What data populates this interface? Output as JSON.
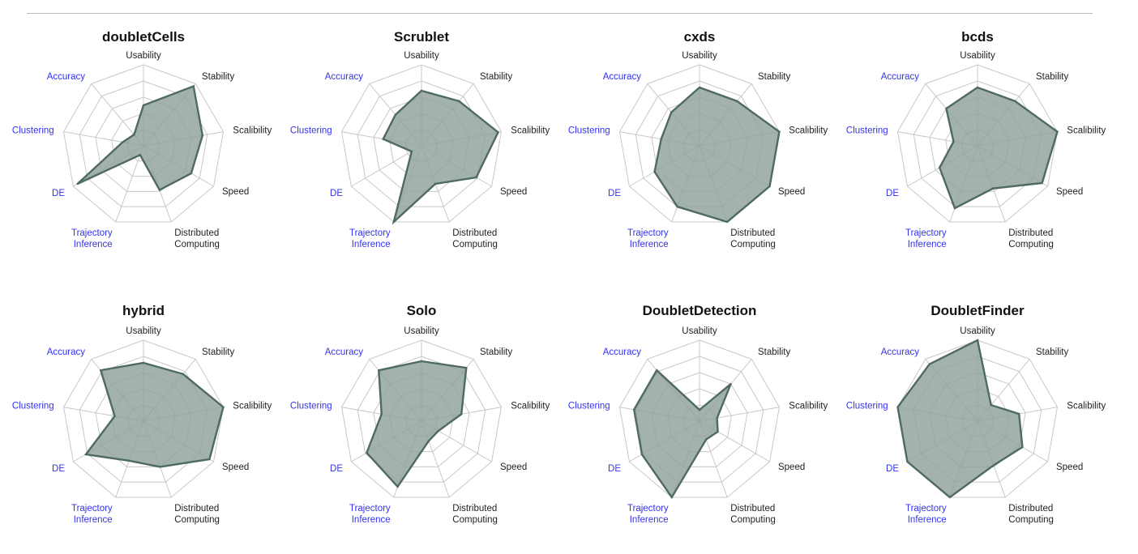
{
  "colors": {
    "polygon_fill": "#8fa19d",
    "polygon_stroke": "#4e6a62",
    "grid": "#c8c8c8",
    "label_blue": "#3333ee",
    "label_black": "#222222"
  },
  "chart_data": [
    {
      "type": "radar",
      "title": "doubletCells",
      "axes": [
        {
          "label": "Usability",
          "color": "black"
        },
        {
          "label": "Stability",
          "color": "black"
        },
        {
          "label": "Scalibility",
          "color": "black"
        },
        {
          "label": "Speed",
          "color": "black"
        },
        {
          "label": "Distributed\nComputing",
          "color": "black"
        },
        {
          "label": "Trajectory\nInference",
          "color": "blue"
        },
        {
          "label": "DE",
          "color": "blue"
        },
        {
          "label": "Clustering",
          "color": "blue"
        },
        {
          "label": "Accuracy",
          "color": "blue"
        }
      ],
      "rlim": [
        0,
        5
      ],
      "values": [
        2.5,
        4.8,
        3.7,
        3.4,
        2.9,
        0.6,
        4.7,
        1.3,
        0.9
      ]
    },
    {
      "type": "radar",
      "title": "Scrublet",
      "axes": [
        {
          "label": "Usability",
          "color": "black"
        },
        {
          "label": "Stability",
          "color": "black"
        },
        {
          "label": "Scalibility",
          "color": "black"
        },
        {
          "label": "Speed",
          "color": "black"
        },
        {
          "label": "Distributed\nComputing",
          "color": "black"
        },
        {
          "label": "Trajectory\nInference",
          "color": "blue"
        },
        {
          "label": "DE",
          "color": "blue"
        },
        {
          "label": "Clustering",
          "color": "blue"
        },
        {
          "label": "Accuracy",
          "color": "blue"
        }
      ],
      "rlim": [
        0,
        5
      ],
      "values": [
        3.4,
        3.6,
        4.8,
        3.9,
        2.5,
        5.0,
        0.7,
        2.4,
        2.5
      ]
    },
    {
      "type": "radar",
      "title": "cxds",
      "axes": [
        {
          "label": "Usability",
          "color": "black"
        },
        {
          "label": "Stability",
          "color": "black"
        },
        {
          "label": "Scalibility",
          "color": "black"
        },
        {
          "label": "Speed",
          "color": "black"
        },
        {
          "label": "Distributed\nComputing",
          "color": "black"
        },
        {
          "label": "Trajectory\nInference",
          "color": "blue"
        },
        {
          "label": "DE",
          "color": "blue"
        },
        {
          "label": "Clustering",
          "color": "blue"
        },
        {
          "label": "Accuracy",
          "color": "blue"
        }
      ],
      "rlim": [
        0,
        5
      ],
      "values": [
        3.6,
        3.6,
        5.0,
        5.0,
        5.0,
        4.0,
        3.2,
        2.4,
        2.7
      ]
    },
    {
      "type": "radar",
      "title": "bcds",
      "axes": [
        {
          "label": "Usability",
          "color": "black"
        },
        {
          "label": "Stability",
          "color": "black"
        },
        {
          "label": "Scalibility",
          "color": "black"
        },
        {
          "label": "Speed",
          "color": "black"
        },
        {
          "label": "Distributed\nComputing",
          "color": "black"
        },
        {
          "label": "Trajectory\nInference",
          "color": "blue"
        },
        {
          "label": "DE",
          "color": "blue"
        },
        {
          "label": "Clustering",
          "color": "blue"
        },
        {
          "label": "Accuracy",
          "color": "blue"
        }
      ],
      "rlim": [
        0,
        5
      ],
      "values": [
        3.6,
        3.6,
        5.0,
        4.6,
        2.8,
        4.1,
        2.7,
        1.5,
        3.0
      ]
    },
    {
      "type": "radar",
      "title": "hybrid",
      "axes": [
        {
          "label": "Usability",
          "color": "black"
        },
        {
          "label": "Stability",
          "color": "black"
        },
        {
          "label": "Scalibility",
          "color": "black"
        },
        {
          "label": "Speed",
          "color": "black"
        },
        {
          "label": "Distributed\nComputing",
          "color": "black"
        },
        {
          "label": "Trajectory\nInference",
          "color": "blue"
        },
        {
          "label": "DE",
          "color": "blue"
        },
        {
          "label": "Clustering",
          "color": "blue"
        },
        {
          "label": "Accuracy",
          "color": "blue"
        }
      ],
      "rlim": [
        0,
        5
      ],
      "values": [
        3.6,
        3.8,
        5.0,
        4.7,
        3.0,
        2.6,
        4.1,
        1.8,
        4.1
      ]
    },
    {
      "type": "radar",
      "title": "Solo",
      "axes": [
        {
          "label": "Usability",
          "color": "black"
        },
        {
          "label": "Stability",
          "color": "black"
        },
        {
          "label": "Scalibility",
          "color": "black"
        },
        {
          "label": "Speed",
          "color": "black"
        },
        {
          "label": "Distributed\nComputing",
          "color": "black"
        },
        {
          "label": "Trajectory\nInference",
          "color": "blue"
        },
        {
          "label": "DE",
          "color": "blue"
        },
        {
          "label": "Clustering",
          "color": "blue"
        },
        {
          "label": "Accuracy",
          "color": "blue"
        }
      ],
      "rlim": [
        0,
        5
      ],
      "values": [
        3.7,
        4.3,
        2.5,
        1.2,
        1.3,
        4.3,
        3.9,
        2.5,
        4.1
      ]
    },
    {
      "type": "radar",
      "title": "DoubletDetection",
      "axes": [
        {
          "label": "Usability",
          "color": "black"
        },
        {
          "label": "Stability",
          "color": "black"
        },
        {
          "label": "Scalibility",
          "color": "black"
        },
        {
          "label": "Speed",
          "color": "black"
        },
        {
          "label": "Distributed\nComputing",
          "color": "black"
        },
        {
          "label": "Trajectory\nInference",
          "color": "blue"
        },
        {
          "label": "DE",
          "color": "blue"
        },
        {
          "label": "Clustering",
          "color": "blue"
        },
        {
          "label": "Accuracy",
          "color": "blue"
        }
      ],
      "rlim": [
        0,
        5
      ],
      "values": [
        0.7,
        3.0,
        1.1,
        1.3,
        1.2,
        5.0,
        4.1,
        4.1,
        4.1
      ]
    },
    {
      "type": "radar",
      "title": "DoubletFinder",
      "axes": [
        {
          "label": "Usability",
          "color": "black"
        },
        {
          "label": "Stability",
          "color": "black"
        },
        {
          "label": "Scalibility",
          "color": "black"
        },
        {
          "label": "Speed",
          "color": "black"
        },
        {
          "label": "Distributed\nComputing",
          "color": "black"
        },
        {
          "label": "Trajectory\nInference",
          "color": "blue"
        },
        {
          "label": "DE",
          "color": "blue"
        },
        {
          "label": "Clustering",
          "color": "blue"
        },
        {
          "label": "Accuracy",
          "color": "blue"
        }
      ],
      "rlim": [
        0,
        5
      ],
      "values": [
        5.0,
        1.3,
        2.6,
        3.2,
        2.9,
        5.0,
        5.0,
        5.0,
        4.6
      ]
    }
  ]
}
